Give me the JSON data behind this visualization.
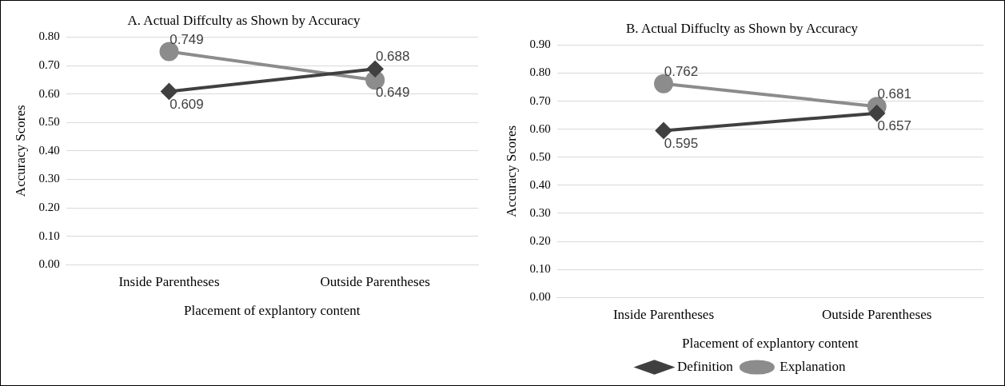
{
  "chart_data": [
    {
      "type": "line",
      "title": "A. Actual Diffculty as Shown by Accuracy",
      "xlabel": "Placement of explantory content",
      "ylabel": "Accuracy Scores",
      "categories": [
        "Inside Parentheses",
        "Outside Parentheses"
      ],
      "series": [
        {
          "color": "#404040",
          "marker": "diamond",
          "values": [
            0.609,
            0.688
          ]
        },
        {
          "color": "#8c8c8c",
          "marker": "circle",
          "values": [
            0.749,
            0.649
          ]
        }
      ],
      "ylim": [
        0,
        0.8
      ],
      "yticks": [
        {
          "value": 0,
          "label": "0.00"
        },
        {
          "value": 0.1,
          "label": "0.10"
        },
        {
          "value": 0.2,
          "label": "0.20"
        },
        {
          "value": 0.3,
          "label": "0.30"
        },
        {
          "value": 0.4,
          "label": "0.40"
        },
        {
          "value": 0.5,
          "label": "0.50"
        },
        {
          "value": 0.6,
          "label": "0.60"
        },
        {
          "value": 0.7,
          "label": "0.70"
        },
        {
          "value": 0.8,
          "label": "0.80"
        }
      ],
      "grid": "y",
      "data_labels": true,
      "legend": false
    },
    {
      "type": "line",
      "title": "B. Actual Diffuclty as Shown by Accuracy",
      "xlabel": "Placement of explantory content",
      "ylabel": "Accuracy Scores",
      "categories": [
        "Inside Parentheses",
        "Outside Parentheses"
      ],
      "series": [
        {
          "name": "Definition",
          "color": "#404040",
          "marker": "diamond",
          "values": [
            0.595,
            0.657
          ]
        },
        {
          "name": "Explanation",
          "color": "#8c8c8c",
          "marker": "circle",
          "values": [
            0.762,
            0.681
          ]
        }
      ],
      "ylim": [
        0,
        0.9
      ],
      "yticks": [
        {
          "value": 0,
          "label": "0.00"
        },
        {
          "value": 0.1,
          "label": "0.10"
        },
        {
          "value": 0.2,
          "label": "0.20"
        },
        {
          "value": 0.3,
          "label": "0.30"
        },
        {
          "value": 0.4,
          "label": "0.40"
        },
        {
          "value": 0.5,
          "label": "0.50"
        },
        {
          "value": 0.6,
          "label": "0.60"
        },
        {
          "value": 0.7,
          "label": "0.70"
        },
        {
          "value": 0.8,
          "label": "0.80"
        },
        {
          "value": 0.9,
          "label": "0.90"
        }
      ],
      "grid": "y",
      "data_labels": true,
      "legend": "bottom"
    }
  ]
}
